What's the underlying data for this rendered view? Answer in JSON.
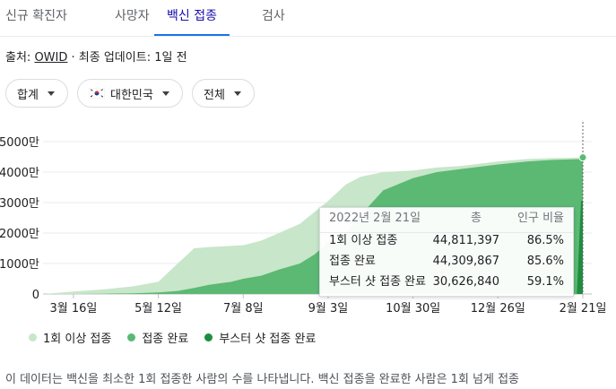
{
  "tabs": [
    {
      "label": "신규 확진자",
      "active": false
    },
    {
      "label": "사망자",
      "active": false
    },
    {
      "label": "백신 접종",
      "active": true
    },
    {
      "label": "검사",
      "active": false
    }
  ],
  "source": {
    "prefix": "출처:",
    "name": "OWID",
    "suffix": "· 최종 업데이트: 1일 전"
  },
  "filters": {
    "measure": "합계",
    "country": "대한민국",
    "range": "전체"
  },
  "colors": {
    "one_dose": "#c8e6c9",
    "complete": "#5bb974",
    "booster": "#1e8e3e",
    "accent": "#1a73e8"
  },
  "chart_data": {
    "type": "area",
    "x": [
      "2021-02-26",
      "2021-03-16",
      "2021-04-05",
      "2021-04-25",
      "2021-05-12",
      "2021-05-25",
      "2021-06-05",
      "2021-06-15",
      "2021-06-30",
      "2021-07-08",
      "2021-07-20",
      "2021-08-01",
      "2021-08-15",
      "2021-08-25",
      "2021-09-03",
      "2021-09-15",
      "2021-09-25",
      "2021-10-10",
      "2021-10-30",
      "2021-11-15",
      "2021-12-01",
      "2021-12-26",
      "2022-01-15",
      "2022-02-01",
      "2022-02-21"
    ],
    "series": [
      {
        "name": "1회 이상 접종",
        "color_key": "one_dose",
        "values": [
          0.1,
          0.8,
          1.5,
          2.5,
          4.0,
          10.0,
          15.0,
          15.4,
          15.8,
          16.0,
          17.5,
          20.0,
          23.0,
          27.0,
          30.5,
          36.0,
          38.5,
          40.0,
          40.5,
          41.5,
          42.0,
          43.5,
          44.3,
          44.6,
          44.8
        ]
      },
      {
        "name": "접종 완료",
        "color_key": "complete",
        "values": [
          0,
          0,
          0.1,
          0.2,
          0.5,
          1.0,
          2.0,
          3.0,
          4.0,
          5.0,
          6.0,
          8.0,
          10.0,
          13.0,
          17.0,
          20.0,
          26.0,
          34.0,
          38.0,
          40.0,
          41.0,
          42.5,
          43.5,
          44.0,
          44.3
        ]
      },
      {
        "name": "부스터 샷 접종 완료",
        "color_key": "booster",
        "values": [
          0,
          0,
          0,
          0,
          0,
          0,
          0,
          0,
          0,
          0,
          0,
          0,
          0,
          0,
          0,
          0,
          0,
          0,
          0,
          0,
          0,
          0,
          0,
          0,
          30.6
        ]
      }
    ],
    "unit": "백만",
    "yticks": [
      "0",
      "1000만",
      "2000만",
      "3000만",
      "4000만",
      "5000만"
    ],
    "ylim": [
      0,
      50
    ],
    "xticks": [
      {
        "date": "2021-03-16",
        "label": "3월 16일"
      },
      {
        "date": "2021-05-12",
        "label": "5월 12일"
      },
      {
        "date": "2021-07-08",
        "label": "7월 8일"
      },
      {
        "date": "2021-09-03",
        "label": "9월 3일"
      },
      {
        "date": "2021-10-30",
        "label": "10월 30일"
      },
      {
        "date": "2021-12-26",
        "label": "12월 26일"
      },
      {
        "date": "2022-02-21",
        "label": "2월 21일"
      }
    ],
    "tooltip": {
      "date": "2022년 2월 21일",
      "col_total": "총",
      "col_ratio": "인구 비율",
      "rows": [
        {
          "label": "1회 이상 접종",
          "total": "44,811,397",
          "ratio": "86.5%"
        },
        {
          "label": "접종 완료",
          "total": "44,309,867",
          "ratio": "85.6%"
        },
        {
          "label": "부스터 샷 접종 완료",
          "total": "30,626,840",
          "ratio": "59.1%"
        }
      ]
    }
  },
  "legend": [
    {
      "label": "1회 이상 접종",
      "color_key": "one_dose"
    },
    {
      "label": "접종 완료",
      "color_key": "complete"
    },
    {
      "label": "부스터 샷 접종 완료",
      "color_key": "booster"
    }
  ],
  "note": "이 데이터는 백신을 최소한 1회 접종한 사람의 수를 나타냅니다. 백신 접종을 완료한 사람은 1회 넘게 접종"
}
